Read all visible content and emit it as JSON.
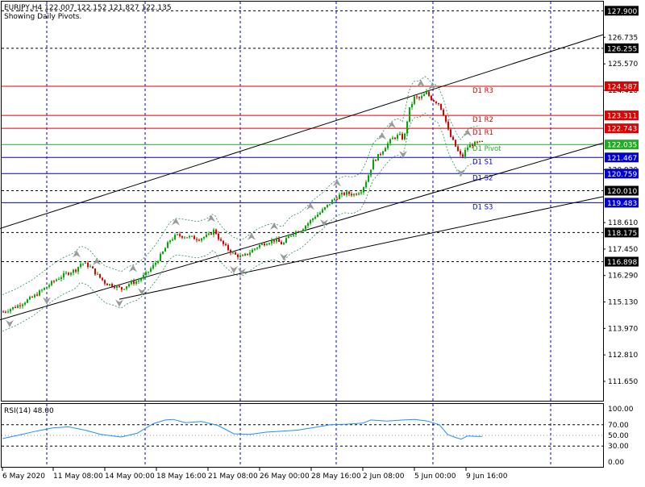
{
  "chart_data": [
    {
      "type": "candlestick",
      "header": "EURJPY,H4  122.007 122.152 121.827 122.135",
      "subtitle": "Showing Daily Pivots.",
      "ylim": [
        110.8,
        128.3
      ],
      "y_ticks": [
        "126.735",
        "125.570",
        "124.410",
        "120.930",
        "118.610",
        "117.450",
        "116.290",
        "115.130",
        "113.970",
        "112.810",
        "111.650"
      ],
      "x_ticks": [
        "6 May 2020",
        "11 May 08:00",
        "14 May 00:00",
        "18 May 16:00",
        "21 May 08:00",
        "26 May 00:00",
        "28 May 16:00",
        "2 Jun 08:00",
        "5 Jun 00:00",
        "9 Jun 16:00"
      ],
      "price_labels": [
        {
          "text": "127.900",
          "price": 127.9,
          "color": "#ffffff",
          "bg": "#000000"
        },
        {
          "text": "126.255",
          "price": 126.255,
          "color": "#ffffff",
          "bg": "#000000"
        },
        {
          "text": "124.587",
          "price": 124.587,
          "color": "#ffffff",
          "bg": "#e00000"
        },
        {
          "text": "123.311",
          "price": 123.311,
          "color": "#ffffff",
          "bg": "#e00000"
        },
        {
          "text": "122.743",
          "price": 122.743,
          "color": "#ffffff",
          "bg": "#e00000"
        },
        {
          "text": "122.035",
          "price": 122.035,
          "color": "#ffffff",
          "bg": "#22aa22"
        },
        {
          "text": "121.467",
          "price": 121.467,
          "color": "#ffffff",
          "bg": "#0000cc"
        },
        {
          "text": "120.759",
          "price": 120.759,
          "color": "#ffffff",
          "bg": "#0000cc"
        },
        {
          "text": "120.010",
          "price": 120.01,
          "color": "#ffffff",
          "bg": "#000000"
        },
        {
          "text": "119.483",
          "price": 119.483,
          "color": "#ffffff",
          "bg": "#0000cc"
        },
        {
          "text": "118.175",
          "price": 118.175,
          "color": "#ffffff",
          "bg": "#000000"
        },
        {
          "text": "116.898",
          "price": 116.898,
          "color": "#ffffff",
          "bg": "#000000"
        }
      ],
      "pivots": [
        {
          "label": "D1  R3",
          "price": 124.587,
          "color": "#e00000"
        },
        {
          "label": "D1  R2",
          "price": 123.311,
          "color": "#e00000"
        },
        {
          "label": "D1  R1",
          "price": 122.743,
          "color": "#e00000"
        },
        {
          "label": "D1  Pivot",
          "price": 122.035,
          "color": "#22aa22"
        },
        {
          "label": "D1  S1",
          "price": 121.467,
          "color": "#0000cc"
        },
        {
          "label": "D1  S2",
          "price": 120.759,
          "color": "#0000cc"
        },
        {
          "label": "D1  S3",
          "price": 119.483,
          "color": "#0000cc"
        }
      ],
      "dashed_levels": [
        127.9,
        126.255,
        120.01,
        118.175,
        116.898
      ],
      "trendlines": [
        {
          "p1": [
            0,
            118.35
          ],
          "p2": [
            748,
            126.85
          ]
        },
        {
          "p1": [
            0,
            114.35
          ],
          "p2": [
            748,
            122.1
          ]
        },
        {
          "p1": [
            148,
            115.25
          ],
          "p2": [
            748,
            119.75
          ]
        }
      ],
      "price_path": [
        [
          3,
          114.7
        ],
        [
          20,
          114.95
        ],
        [
          40,
          115.35
        ],
        [
          55,
          115.75
        ],
        [
          68,
          116.1
        ],
        [
          80,
          116.35
        ],
        [
          93,
          116.55
        ],
        [
          100,
          116.85
        ],
        [
          110,
          116.7
        ],
        [
          120,
          116.3
        ],
        [
          130,
          115.95
        ],
        [
          140,
          115.85
        ],
        [
          150,
          115.7
        ],
        [
          160,
          115.95
        ],
        [
          170,
          116.05
        ],
        [
          180,
          116.35
        ],
        [
          190,
          116.75
        ],
        [
          200,
          117.25
        ],
        [
          210,
          117.85
        ],
        [
          218,
          118.05
        ],
        [
          230,
          118.0
        ],
        [
          245,
          117.9
        ],
        [
          258,
          118.05
        ],
        [
          265,
          118.3
        ],
        [
          272,
          117.8
        ],
        [
          280,
          117.5
        ],
        [
          290,
          117.2
        ],
        [
          300,
          117.1
        ],
        [
          310,
          117.35
        ],
        [
          320,
          117.6
        ],
        [
          330,
          117.75
        ],
        [
          340,
          117.85
        ],
        [
          350,
          117.65
        ],
        [
          356,
          117.95
        ],
        [
          362,
          118.15
        ],
        [
          372,
          118.3
        ],
        [
          380,
          118.55
        ],
        [
          390,
          118.9
        ],
        [
          398,
          119.1
        ],
        [
          405,
          119.35
        ],
        [
          412,
          119.6
        ],
        [
          420,
          119.8
        ],
        [
          428,
          119.9
        ],
        [
          438,
          119.85
        ],
        [
          448,
          120.05
        ],
        [
          455,
          120.6
        ],
        [
          462,
          121.3
        ],
        [
          470,
          121.6
        ],
        [
          478,
          122.0
        ],
        [
          486,
          122.3
        ],
        [
          494,
          122.45
        ],
        [
          500,
          122.25
        ],
        [
          506,
          123.5
        ],
        [
          513,
          124.1
        ],
        [
          520,
          124.05
        ],
        [
          528,
          124.3
        ],
        [
          535,
          124.0
        ],
        [
          543,
          123.85
        ],
        [
          550,
          123.3
        ],
        [
          556,
          122.5
        ],
        [
          562,
          122.1
        ],
        [
          568,
          121.65
        ],
        [
          572,
          121.45
        ],
        [
          578,
          121.9
        ],
        [
          585,
          122.05
        ],
        [
          592,
          122.1
        ],
        [
          598,
          122.135
        ]
      ],
      "rsi": {
        "label": "RSI(14) 48.00",
        "ticks": [
          "100.00",
          "70.00",
          "50.00",
          "30.00",
          "0.00"
        ],
        "levels": [
          70,
          30
        ],
        "path": [
          [
            3,
            44
          ],
          [
            25,
            51
          ],
          [
            45,
            58
          ],
          [
            65,
            64
          ],
          [
            85,
            66
          ],
          [
            105,
            60
          ],
          [
            125,
            52
          ],
          [
            150,
            47
          ],
          [
            170,
            54
          ],
          [
            190,
            72
          ],
          [
            205,
            79
          ],
          [
            215,
            80
          ],
          [
            230,
            74
          ],
          [
            250,
            76
          ],
          [
            270,
            69
          ],
          [
            290,
            53
          ],
          [
            310,
            52
          ],
          [
            330,
            56
          ],
          [
            350,
            58
          ],
          [
            370,
            60
          ],
          [
            390,
            65
          ],
          [
            410,
            70
          ],
          [
            430,
            71
          ],
          [
            450,
            73
          ],
          [
            460,
            79
          ],
          [
            480,
            77
          ],
          [
            500,
            79
          ],
          [
            515,
            80
          ],
          [
            530,
            77
          ],
          [
            545,
            70
          ],
          [
            555,
            52
          ],
          [
            565,
            46
          ],
          [
            572,
            43
          ],
          [
            580,
            49
          ],
          [
            590,
            48
          ],
          [
            598,
            48
          ]
        ]
      }
    }
  ]
}
